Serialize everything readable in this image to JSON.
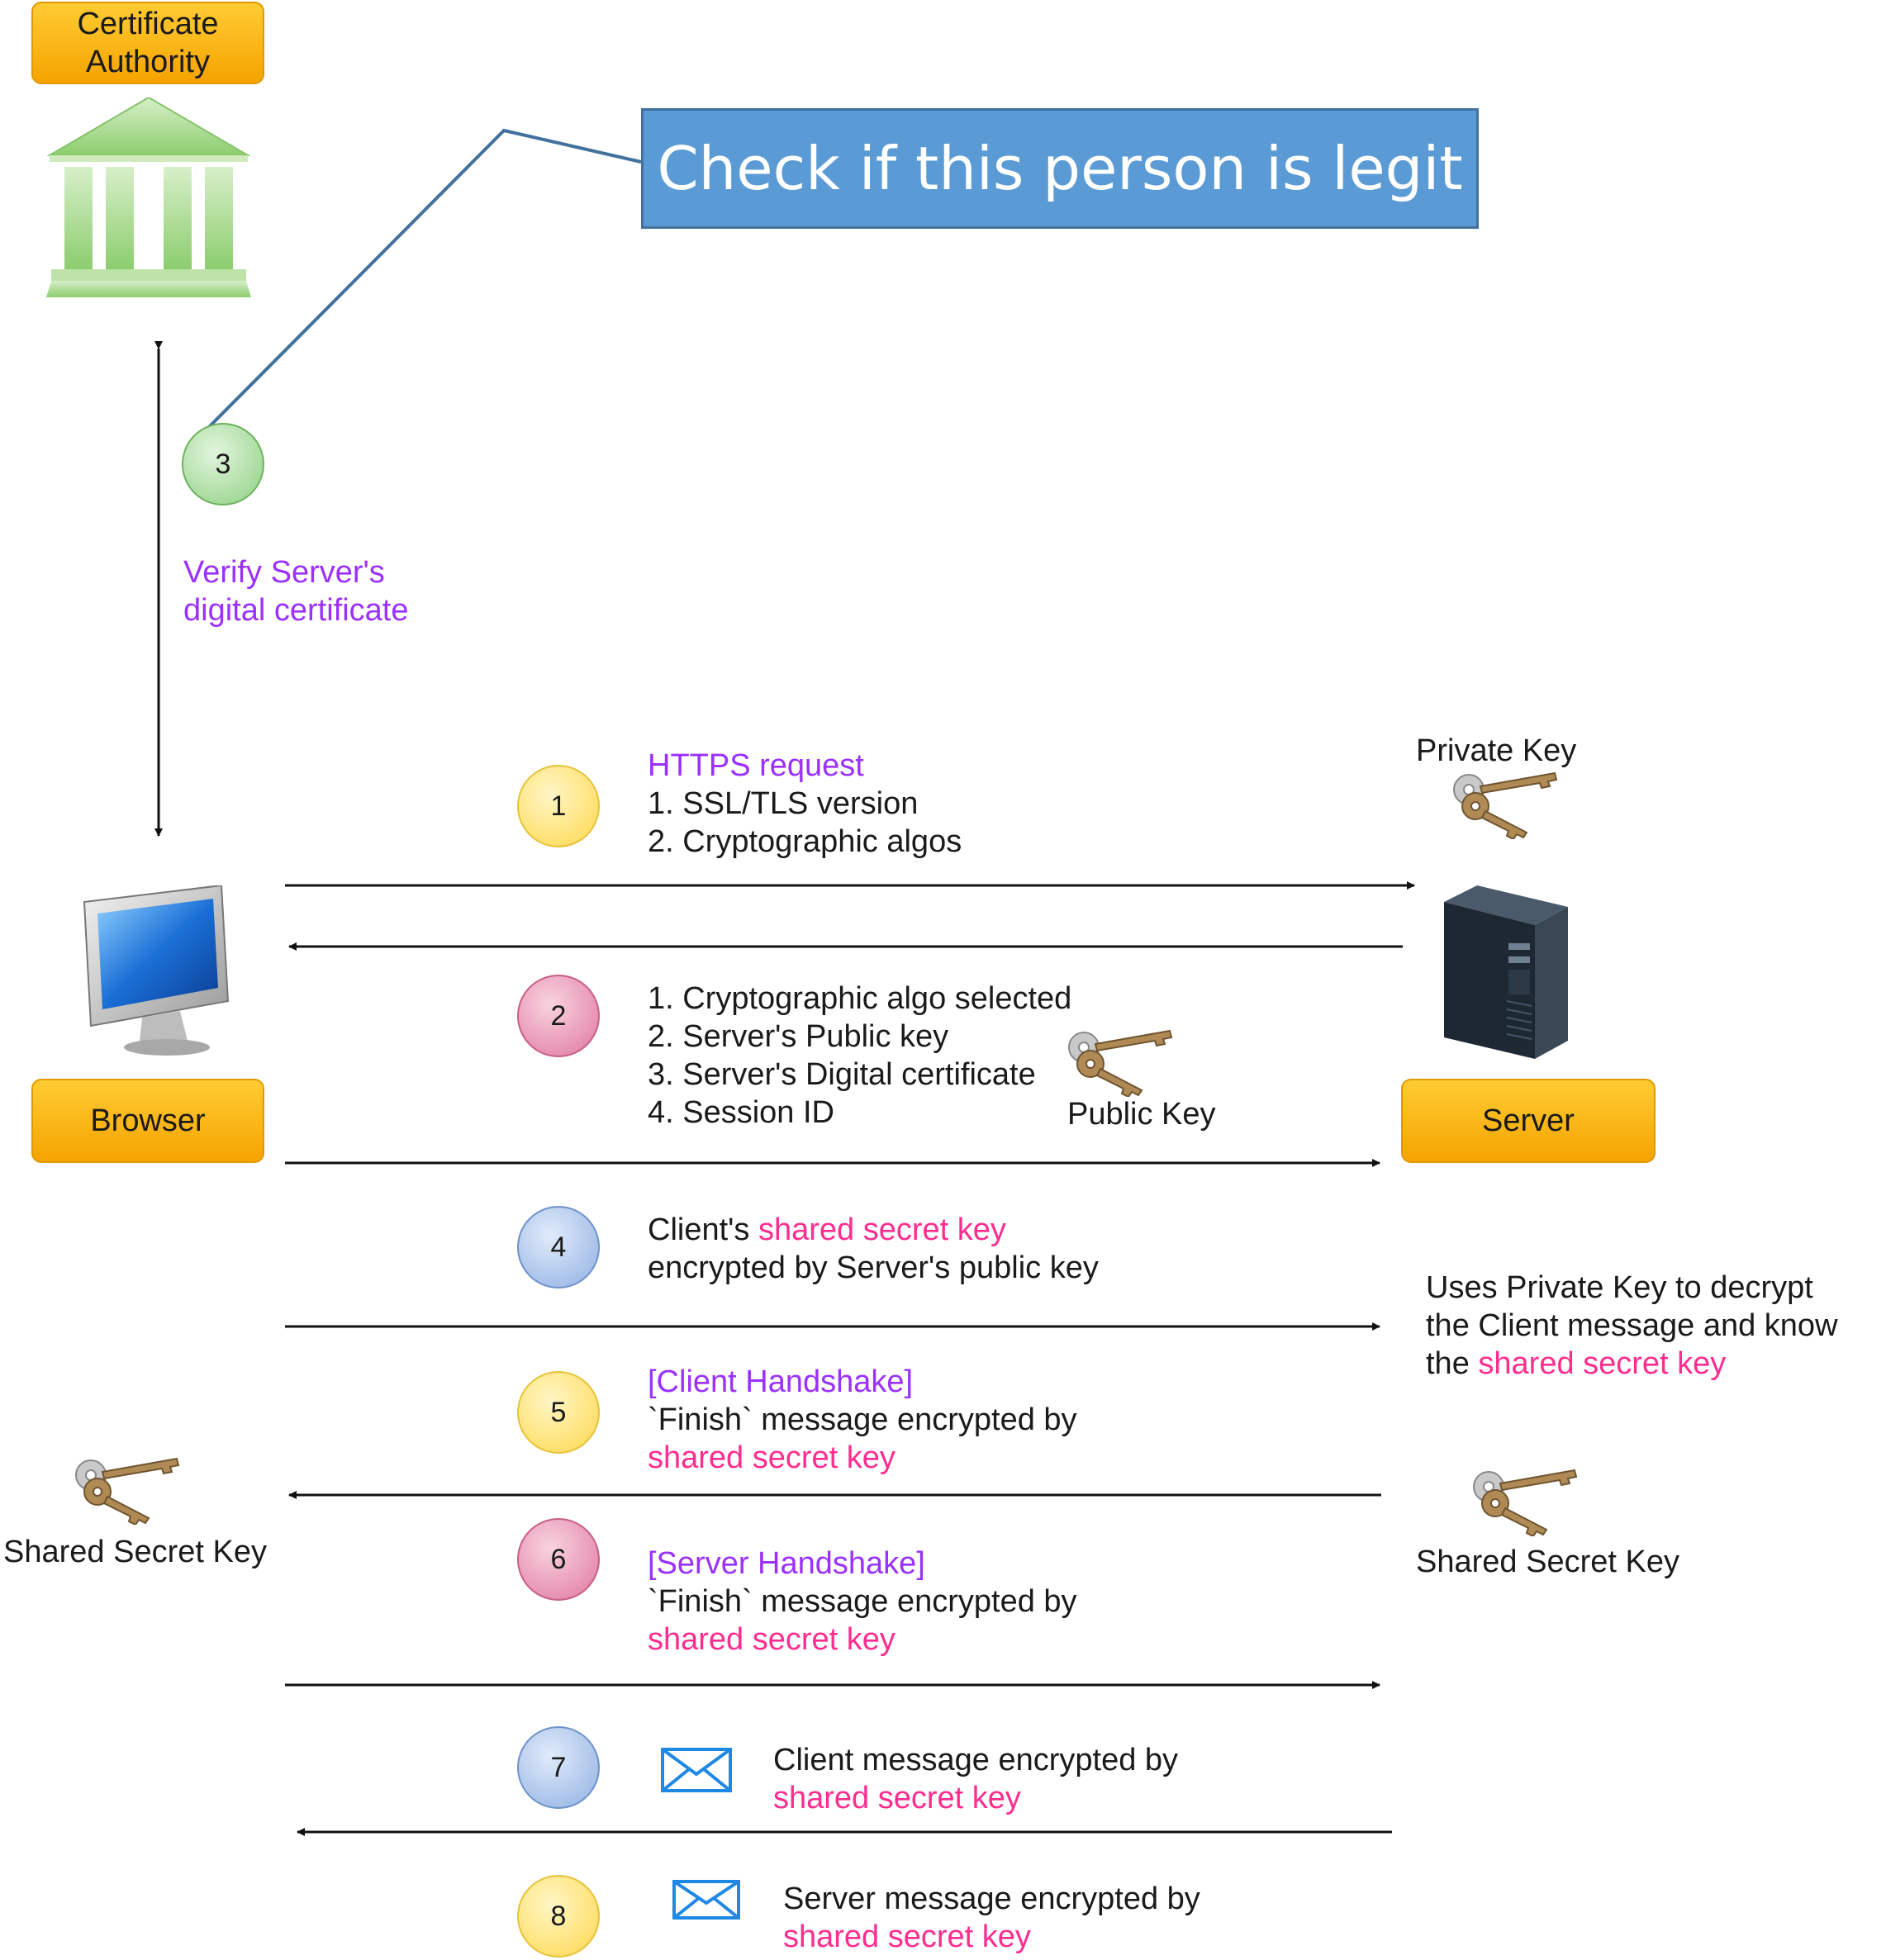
{
  "nodes": {
    "certificate_authority": "Certificate Authority",
    "browser": "Browser",
    "server": "Server"
  },
  "callout": {
    "text": "Check if this person is legit"
  },
  "verify": {
    "line1": "Verify Server's",
    "line2": "digital certificate"
  },
  "steps": [
    {
      "num": "1",
      "color": "yellow"
    },
    {
      "num": "2",
      "color": "pink"
    },
    {
      "num": "3",
      "color": "green"
    },
    {
      "num": "4",
      "color": "blue"
    },
    {
      "num": "5",
      "color": "yellow"
    },
    {
      "num": "6",
      "color": "pink"
    },
    {
      "num": "7",
      "color": "blue"
    },
    {
      "num": "8",
      "color": "yellow"
    }
  ],
  "step1": {
    "title": "HTTPS request",
    "line1": "1. SSL/TLS version",
    "line2": "2. Cryptographic algos"
  },
  "step2": {
    "line1": "1. Cryptographic algo selected",
    "line2": "2. Server's Public key",
    "line3": "3. Server's Digital certificate",
    "line4": "4. Session ID"
  },
  "step4": {
    "prefix": "Client's ",
    "highlight": "shared secret key",
    "line2": "encrypted by Server's public key"
  },
  "step5": {
    "title": "[Client Handshake]",
    "line1": "`Finish` message encrypted by",
    "highlight": "shared secret key"
  },
  "step6": {
    "title": "[Server Handshake]",
    "line1": "`Finish` message encrypted by",
    "highlight": "shared secret key"
  },
  "step7": {
    "line1": "Client message encrypted by",
    "highlight": "shared secret key"
  },
  "step8": {
    "line1": "Server message encrypted by",
    "highlight": "shared secret key"
  },
  "server_note": {
    "line1": "Uses Private Key to decrypt",
    "line2": "the Client message and know",
    "line3_prefix": "the ",
    "highlight": "shared secret key"
  },
  "labels": {
    "private_key": "Private Key",
    "public_key": "Public Key",
    "shared_secret_key_left": "Shared Secret Key",
    "shared_secret_key_right": "Shared Secret Key"
  },
  "icons": {
    "ca": "bank-building-icon",
    "browser": "desktop-monitor-icon",
    "server": "server-tower-icon",
    "key": "keys-icon",
    "mail": "envelope-icon"
  },
  "colors": {
    "purple": "#9b30ff",
    "pink": "#ff2d8f",
    "callout": "#5b9bd5"
  }
}
